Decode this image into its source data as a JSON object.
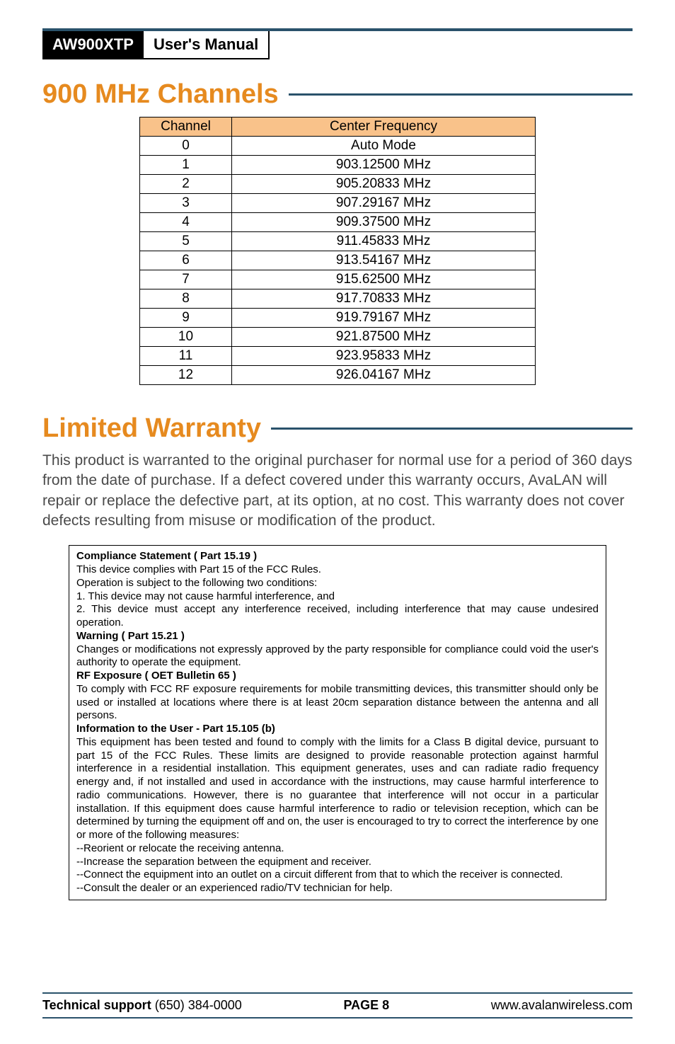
{
  "header": {
    "model": "AW900XTP",
    "title": "User's Manual",
    "rule_color": "#2a526b"
  },
  "channels": {
    "title": "900 MHz Channels",
    "title_color": "#e68a1f",
    "rule_color": "#2a526b",
    "header_bg": "#f9c28a",
    "col_channel": "Channel",
    "col_freq": "Center Frequency",
    "rows": [
      {
        "ch": "0",
        "freq": "Auto Mode"
      },
      {
        "ch": "1",
        "freq": "903.12500 MHz"
      },
      {
        "ch": "2",
        "freq": "905.20833 MHz"
      },
      {
        "ch": "3",
        "freq": "907.29167 MHz"
      },
      {
        "ch": "4",
        "freq": "909.37500 MHz"
      },
      {
        "ch": "5",
        "freq": "911.45833 MHz"
      },
      {
        "ch": "6",
        "freq": "913.54167 MHz"
      },
      {
        "ch": "7",
        "freq": "915.62500 MHz"
      },
      {
        "ch": "8",
        "freq": "917.70833 MHz"
      },
      {
        "ch": "9",
        "freq": "919.79167 MHz"
      },
      {
        "ch": "10",
        "freq": "921.87500 MHz"
      },
      {
        "ch": "11",
        "freq": "923.95833 MHz"
      },
      {
        "ch": "12",
        "freq": "926.04167 MHz"
      }
    ]
  },
  "warranty": {
    "title": "Limited Warranty",
    "title_color": "#e68a1f",
    "rule_color": "#2a526b",
    "text": "This product is warranted to the original purchaser for normal use for a period of 360 days from the date of purchase. If a defect covered under this warranty occurs, AvaLAN will repair or replace the defective part, at its option, at no cost. This warranty does not cover defects resulting from misuse or modification of the product."
  },
  "compliance": {
    "h1": "Compliance Statement ( Part 15.19 )",
    "p1": "This device complies with Part 15 of the FCC Rules.",
    "p2": "Operation is subject to the following two conditions:",
    "p3": "1. This device may not cause harmful interference, and",
    "p4": "2. This device must accept any interference received, including interference that may cause undesired operation.",
    "h2": "Warning ( Part 15.21 )",
    "p5": "Changes or modifications not expressly approved by the party responsible for compliance could void the user's authority to operate the equipment.",
    "h3": "RF Exposure ( OET Bulletin 65 )",
    "p6": "To comply with FCC RF exposure requirements for mobile transmitting devices, this transmitter should only be used or installed at locations where there is at least 20cm separation distance between the antenna and all persons.",
    "h4": "Information to the User - Part 15.105 (b)",
    "p7": "This equipment has been tested and found to comply with the limits for a Class B digital device, pursuant to part 15 of the FCC Rules. These limits are designed to provide reasonable protection against harmful interference in a residential installation. This equipment generates, uses and can radiate radio frequency energy and, if not installed and used in accordance with the instructions, may cause harmful interference to radio communications. However, there is no guarantee that interference will not occur in a particular installation. If this equipment does cause harmful interference to radio or television reception, which can be determined by turning the equipment off and on, the user is encouraged to try to correct the interference by one or more of the following measures:",
    "p8": "--Reorient or relocate the receiving antenna.",
    "p9": "--Increase the separation between the equipment and receiver.",
    "p10": "--Connect the equipment into an outlet on a circuit different from that to which the receiver is connected.",
    "p11": "--Consult the dealer or an experienced radio/TV technician for help."
  },
  "footer": {
    "support_label": "Technical support",
    "support_phone": " (650) 384-0000",
    "page": "PAGE 8",
    "url": "www.avalanwireless.com",
    "rule_color": "#2a526b"
  }
}
